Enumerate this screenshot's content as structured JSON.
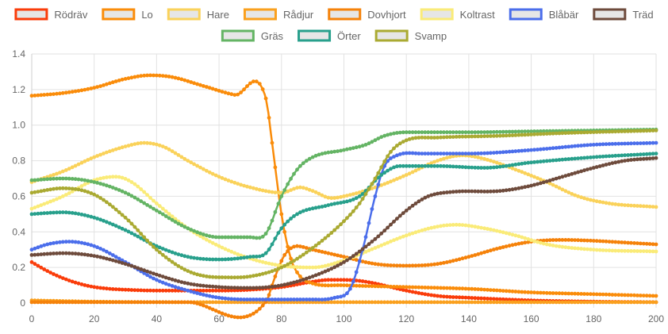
{
  "chart_data": {
    "type": "line",
    "title": "",
    "xlabel": "",
    "ylabel": "",
    "xlim": [
      0,
      200
    ],
    "ylim": [
      0,
      1.4
    ],
    "x_ticks": [
      "0",
      "20",
      "40",
      "60",
      "80",
      "100",
      "120",
      "140",
      "160",
      "180",
      "200"
    ],
    "y_ticks": [
      "0",
      "0.2",
      "0.4",
      "0.6",
      "0.8",
      "1.0",
      "1.2",
      "1.4"
    ],
    "grid": true,
    "legend_position": "top",
    "series": [
      {
        "name": "Rödräv",
        "color": "#fa3c0a",
        "fill": "#e6e6e6",
        "points": [
          [
            0,
            0.23
          ],
          [
            5,
            0.18
          ],
          [
            10,
            0.14
          ],
          [
            15,
            0.11
          ],
          [
            20,
            0.09
          ],
          [
            25,
            0.08
          ],
          [
            30,
            0.075
          ],
          [
            40,
            0.07
          ],
          [
            50,
            0.07
          ],
          [
            60,
            0.07
          ],
          [
            70,
            0.075
          ],
          [
            80,
            0.09
          ],
          [
            90,
            0.12
          ],
          [
            95,
            0.13
          ],
          [
            100,
            0.13
          ],
          [
            105,
            0.125
          ],
          [
            110,
            0.11
          ],
          [
            120,
            0.07
          ],
          [
            130,
            0.04
          ],
          [
            140,
            0.03
          ],
          [
            160,
            0.015
          ],
          [
            180,
            0.008
          ],
          [
            200,
            0.005
          ]
        ]
      },
      {
        "name": "Lo",
        "color": "#fa8c0a",
        "fill": "#e6e6e6",
        "points": [
          [
            0,
            1.165
          ],
          [
            10,
            1.18
          ],
          [
            20,
            1.21
          ],
          [
            30,
            1.26
          ],
          [
            38,
            1.28
          ],
          [
            45,
            1.27
          ],
          [
            55,
            1.22
          ],
          [
            65,
            1.17
          ],
          [
            75,
            1.15
          ],
          [
            77,
            0.9
          ],
          [
            80,
            0.5
          ],
          [
            83,
            0.25
          ],
          [
            86,
            0.15
          ],
          [
            90,
            0.11
          ],
          [
            100,
            0.1
          ],
          [
            120,
            0.09
          ],
          [
            140,
            0.08
          ],
          [
            160,
            0.06
          ],
          [
            180,
            0.05
          ],
          [
            200,
            0.04
          ]
        ]
      },
      {
        "name": "Hare",
        "color": "#fad25a",
        "fill": "#e6e6e6",
        "points": [
          [
            0,
            0.68
          ],
          [
            10,
            0.74
          ],
          [
            20,
            0.82
          ],
          [
            30,
            0.88
          ],
          [
            36,
            0.9
          ],
          [
            42,
            0.88
          ],
          [
            50,
            0.8
          ],
          [
            60,
            0.71
          ],
          [
            70,
            0.65
          ],
          [
            80,
            0.62
          ],
          [
            86,
            0.65
          ],
          [
            90,
            0.63
          ],
          [
            96,
            0.59
          ],
          [
            100,
            0.6
          ],
          [
            110,
            0.65
          ],
          [
            120,
            0.72
          ],
          [
            130,
            0.8
          ],
          [
            138,
            0.83
          ],
          [
            145,
            0.81
          ],
          [
            155,
            0.75
          ],
          [
            165,
            0.68
          ],
          [
            175,
            0.6
          ],
          [
            185,
            0.56
          ],
          [
            200,
            0.54
          ]
        ]
      },
      {
        "name": "Rådjur",
        "color": "#faa01e",
        "fill": "#e6e6e6",
        "points": [
          [
            0,
            0.015
          ],
          [
            20,
            0.008
          ],
          [
            50,
            0.005
          ],
          [
            75,
            0.005
          ],
          [
            100,
            0.005
          ],
          [
            150,
            0.005
          ],
          [
            200,
            0.005
          ]
        ]
      },
      {
        "name": "Dovhjort",
        "color": "#f5820a",
        "fill": "#e6e6e6",
        "points": [
          [
            0,
            0.005
          ],
          [
            50,
            0.005
          ],
          [
            75,
            0.008
          ],
          [
            78,
            0.15
          ],
          [
            81,
            0.27
          ],
          [
            85,
            0.32
          ],
          [
            90,
            0.3
          ],
          [
            100,
            0.26
          ],
          [
            110,
            0.22
          ],
          [
            120,
            0.21
          ],
          [
            130,
            0.22
          ],
          [
            140,
            0.26
          ],
          [
            150,
            0.31
          ],
          [
            160,
            0.345
          ],
          [
            170,
            0.355
          ],
          [
            180,
            0.35
          ],
          [
            190,
            0.34
          ],
          [
            200,
            0.33
          ]
        ]
      },
      {
        "name": "Koltrast",
        "color": "#faeb78",
        "fill": "#e6e6e6",
        "points": [
          [
            0,
            0.53
          ],
          [
            10,
            0.6
          ],
          [
            20,
            0.69
          ],
          [
            27,
            0.71
          ],
          [
            32,
            0.68
          ],
          [
            40,
            0.56
          ],
          [
            50,
            0.42
          ],
          [
            60,
            0.32
          ],
          [
            70,
            0.25
          ],
          [
            80,
            0.21
          ],
          [
            90,
            0.2
          ],
          [
            100,
            0.24
          ],
          [
            110,
            0.31
          ],
          [
            120,
            0.38
          ],
          [
            130,
            0.43
          ],
          [
            136,
            0.44
          ],
          [
            145,
            0.42
          ],
          [
            155,
            0.38
          ],
          [
            165,
            0.33
          ],
          [
            180,
            0.3
          ],
          [
            200,
            0.29
          ]
        ]
      },
      {
        "name": "Blåbär",
        "color": "#4b6eeb",
        "fill": "#e6e6e6",
        "points": [
          [
            0,
            0.3
          ],
          [
            5,
            0.33
          ],
          [
            12,
            0.345
          ],
          [
            20,
            0.32
          ],
          [
            30,
            0.23
          ],
          [
            40,
            0.13
          ],
          [
            50,
            0.07
          ],
          [
            60,
            0.03
          ],
          [
            70,
            0.02
          ],
          [
            80,
            0.02
          ],
          [
            90,
            0.02
          ],
          [
            97,
            0.03
          ],
          [
            102,
            0.08
          ],
          [
            106,
            0.3
          ],
          [
            110,
            0.6
          ],
          [
            113,
            0.77
          ],
          [
            117,
            0.83
          ],
          [
            125,
            0.84
          ],
          [
            140,
            0.84
          ],
          [
            160,
            0.86
          ],
          [
            180,
            0.89
          ],
          [
            200,
            0.9
          ]
        ]
      },
      {
        "name": "Träd",
        "color": "#6e4b3c",
        "fill": "#e6e6e6",
        "points": [
          [
            0,
            0.27
          ],
          [
            10,
            0.28
          ],
          [
            20,
            0.265
          ],
          [
            30,
            0.22
          ],
          [
            40,
            0.16
          ],
          [
            50,
            0.11
          ],
          [
            60,
            0.09
          ],
          [
            70,
            0.085
          ],
          [
            80,
            0.1
          ],
          [
            90,
            0.15
          ],
          [
            100,
            0.23
          ],
          [
            110,
            0.36
          ],
          [
            120,
            0.52
          ],
          [
            127,
            0.6
          ],
          [
            135,
            0.625
          ],
          [
            150,
            0.63
          ],
          [
            160,
            0.66
          ],
          [
            170,
            0.71
          ],
          [
            180,
            0.76
          ],
          [
            190,
            0.8
          ],
          [
            200,
            0.815
          ]
        ]
      },
      {
        "name": "Gräs",
        "color": "#64b464",
        "fill": "#e6e6e6",
        "points": [
          [
            0,
            0.69
          ],
          [
            10,
            0.7
          ],
          [
            20,
            0.68
          ],
          [
            30,
            0.62
          ],
          [
            40,
            0.52
          ],
          [
            50,
            0.42
          ],
          [
            60,
            0.37
          ],
          [
            70,
            0.37
          ],
          [
            75,
            0.39
          ],
          [
            80,
            0.6
          ],
          [
            85,
            0.75
          ],
          [
            90,
            0.82
          ],
          [
            100,
            0.86
          ],
          [
            107,
            0.89
          ],
          [
            113,
            0.94
          ],
          [
            120,
            0.96
          ],
          [
            140,
            0.96
          ],
          [
            160,
            0.965
          ],
          [
            180,
            0.97
          ],
          [
            200,
            0.975
          ]
        ]
      },
      {
        "name": "Örter",
        "color": "#28a08c",
        "fill": "#e6e6e6",
        "points": [
          [
            0,
            0.5
          ],
          [
            10,
            0.51
          ],
          [
            20,
            0.48
          ],
          [
            30,
            0.41
          ],
          [
            40,
            0.32
          ],
          [
            50,
            0.26
          ],
          [
            60,
            0.245
          ],
          [
            70,
            0.26
          ],
          [
            75,
            0.28
          ],
          [
            80,
            0.42
          ],
          [
            85,
            0.5
          ],
          [
            95,
            0.55
          ],
          [
            105,
            0.6
          ],
          [
            112,
            0.72
          ],
          [
            118,
            0.77
          ],
          [
            130,
            0.77
          ],
          [
            145,
            0.76
          ],
          [
            160,
            0.79
          ],
          [
            180,
            0.82
          ],
          [
            200,
            0.84
          ]
        ]
      },
      {
        "name": "Svamp",
        "color": "#aaaa32",
        "fill": "#e6e6e6",
        "points": [
          [
            0,
            0.62
          ],
          [
            10,
            0.645
          ],
          [
            20,
            0.61
          ],
          [
            30,
            0.48
          ],
          [
            40,
            0.3
          ],
          [
            50,
            0.18
          ],
          [
            60,
            0.145
          ],
          [
            70,
            0.15
          ],
          [
            80,
            0.2
          ],
          [
            90,
            0.31
          ],
          [
            100,
            0.46
          ],
          [
            105,
            0.56
          ],
          [
            110,
            0.7
          ],
          [
            115,
            0.85
          ],
          [
            120,
            0.915
          ],
          [
            130,
            0.93
          ],
          [
            150,
            0.94
          ],
          [
            170,
            0.955
          ],
          [
            200,
            0.97
          ]
        ]
      }
    ]
  }
}
